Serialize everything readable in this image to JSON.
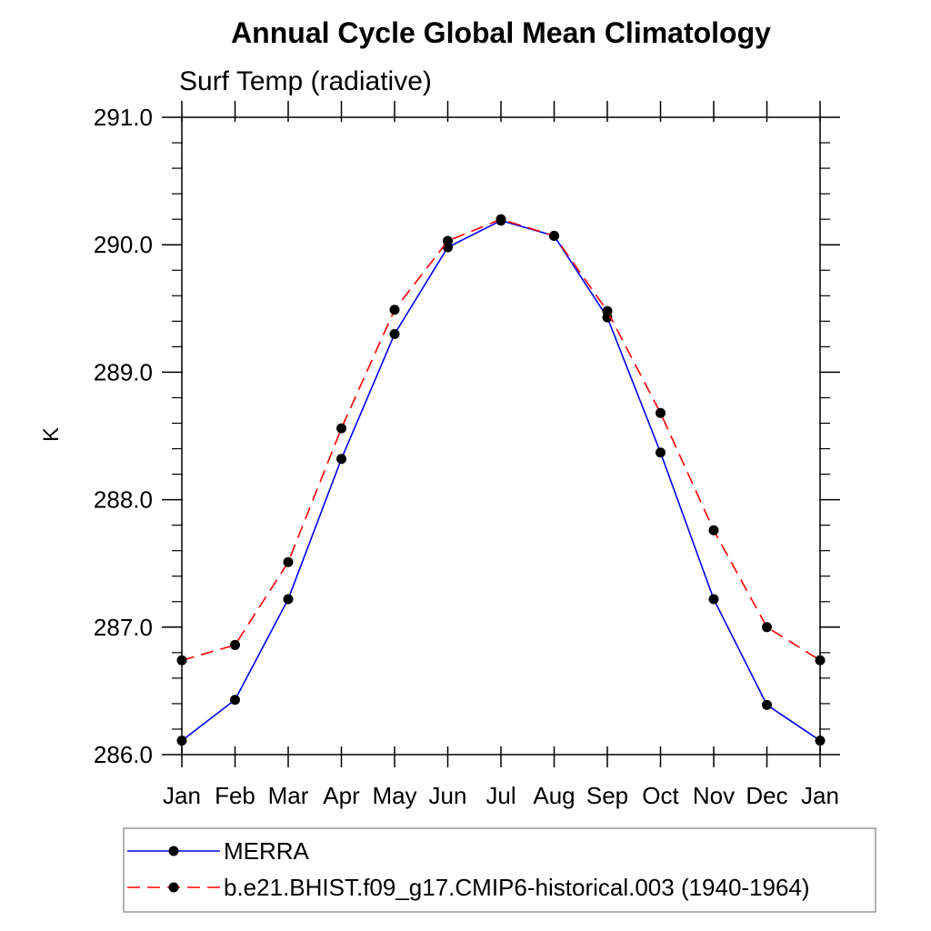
{
  "chart_data": {
    "type": "line",
    "title": "Annual Cycle Global Mean Climatology",
    "subtitle": "Surf Temp (radiative)",
    "ylabel": "K",
    "categories": [
      "Jan",
      "Feb",
      "Mar",
      "Apr",
      "May",
      "Jun",
      "Jul",
      "Aug",
      "Sep",
      "Oct",
      "Nov",
      "Dec",
      "Jan"
    ],
    "ylim": [
      286.0,
      291.0
    ],
    "y_major_ticks": [
      286.0,
      287.0,
      288.0,
      289.0,
      290.0,
      291.0
    ],
    "y_tick_labels": [
      "286.0",
      "287.0",
      "288.0",
      "289.0",
      "290.0",
      "291.0"
    ],
    "y_minor_interval": 0.2,
    "grid": false,
    "legend_position": "bottom-left",
    "series": [
      {
        "name": "MERRA",
        "line_color": "#0000ff",
        "line_style": "solid",
        "marker": "filled-circle",
        "marker_color": "#000000",
        "values": [
          286.11,
          286.43,
          287.22,
          288.32,
          289.3,
          289.98,
          290.19,
          290.07,
          289.43,
          288.37,
          287.22,
          286.39,
          286.11
        ]
      },
      {
        "name": "b.e21.BHIST.f09_g17.CMIP6-historical.003 (1940-1964)",
        "line_color": "#ff0000",
        "line_style": "dashed",
        "marker": "filled-circle",
        "marker_color": "#000000",
        "values": [
          286.74,
          286.86,
          287.51,
          288.56,
          289.49,
          290.03,
          290.2,
          290.07,
          289.48,
          288.68,
          287.76,
          287.0,
          286.74
        ]
      }
    ]
  }
}
